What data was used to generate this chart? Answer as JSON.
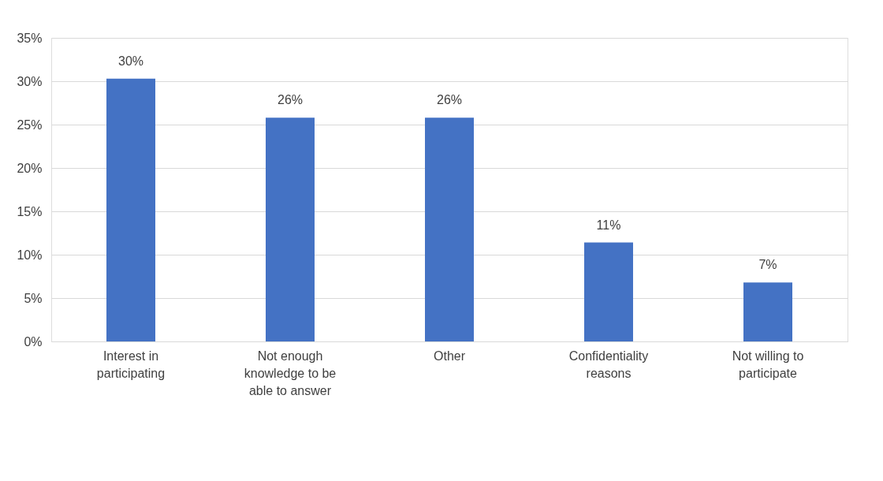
{
  "chart_data": {
    "type": "bar",
    "categories": [
      "Interest in participating",
      "Not enough knowledge to be able to answer",
      "Other",
      "Confidentiality reasons",
      "Not willing to participate"
    ],
    "values": [
      30.3,
      25.8,
      25.8,
      11.4,
      6.8
    ],
    "value_labels": [
      "30%",
      "26%",
      "26%",
      "11%",
      "7%"
    ],
    "color": "#4472c4",
    "ylim": [
      0,
      35
    ],
    "yticks": [
      {
        "value": 0,
        "label": "0%"
      },
      {
        "value": 5,
        "label": "5%"
      },
      {
        "value": 10,
        "label": "10%"
      },
      {
        "value": 15,
        "label": "15%"
      },
      {
        "value": 20,
        "label": "20%"
      },
      {
        "value": 25,
        "label": "25%"
      },
      {
        "value": 30,
        "label": "30%"
      },
      {
        "value": 35,
        "label": "35%"
      }
    ],
    "grid": "y"
  }
}
